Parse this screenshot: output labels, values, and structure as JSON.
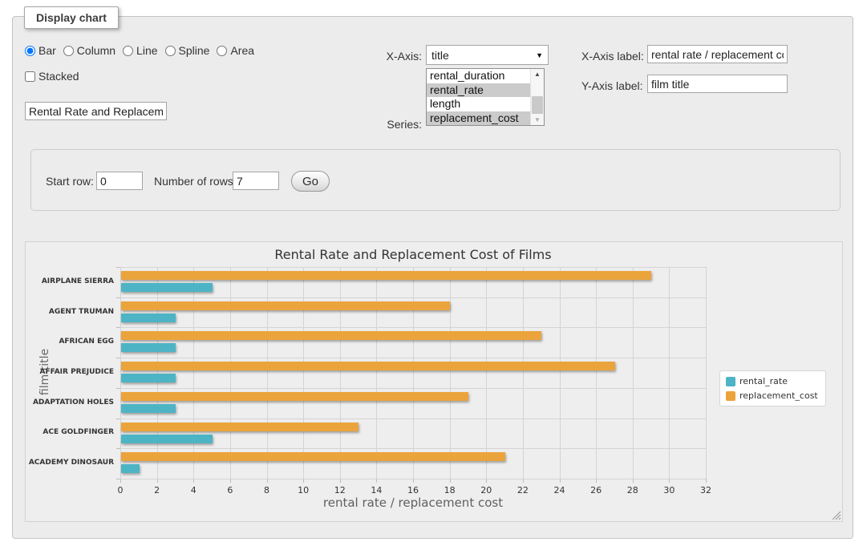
{
  "panel": {
    "title": "Display chart"
  },
  "controls": {
    "chart_type": {
      "options": [
        "Bar",
        "Column",
        "Line",
        "Spline",
        "Area"
      ],
      "selected": "Bar"
    },
    "stacked_label": "Stacked",
    "stacked_checked": false,
    "chart_title_value": "Rental Rate and Replacemer",
    "x_axis_label_text": "X-Axis:",
    "x_axis_selected": "title",
    "series_label_text": "Series:",
    "series": {
      "options": [
        "rental_duration",
        "rental_rate",
        "length",
        "replacement_cost"
      ],
      "selected": [
        "rental_rate",
        "replacement_cost"
      ]
    },
    "x_axis_title_label": "X-Axis label:",
    "x_axis_title_value": "rental rate / replacement cost",
    "y_axis_title_label": "Y-Axis label:",
    "y_axis_title_value": "film title"
  },
  "rows_form": {
    "start_row_label": "Start row:",
    "start_row_value": "0",
    "number_of_rows_label": "Number of rows:",
    "number_of_rows_value": "7",
    "go_label": "Go"
  },
  "chart_data": {
    "type": "bar",
    "title": "Rental Rate and Replacement Cost of Films",
    "xlabel": "rental rate / replacement cost",
    "ylabel": "film title",
    "categories": [
      "AIRPLANE SIERRA",
      "AGENT TRUMAN",
      "AFRICAN EGG",
      "AFFAIR PREJUDICE",
      "ADAPTATION HOLES",
      "ACE GOLDFINGER",
      "ACADEMY DINOSAUR"
    ],
    "series": [
      {
        "name": "rental_rate",
        "color": "#4DB4C5",
        "values": [
          4.99,
          2.99,
          2.99,
          2.99,
          2.99,
          4.99,
          0.99
        ]
      },
      {
        "name": "replacement_cost",
        "color": "#EBA43C",
        "values": [
          28.99,
          17.99,
          22.99,
          26.99,
          18.99,
          12.99,
          20.99
        ]
      }
    ],
    "xlim": [
      0,
      32
    ],
    "xtick_step": 2,
    "grid": true,
    "legend_position": "right",
    "background_color": "#eeeeee"
  }
}
